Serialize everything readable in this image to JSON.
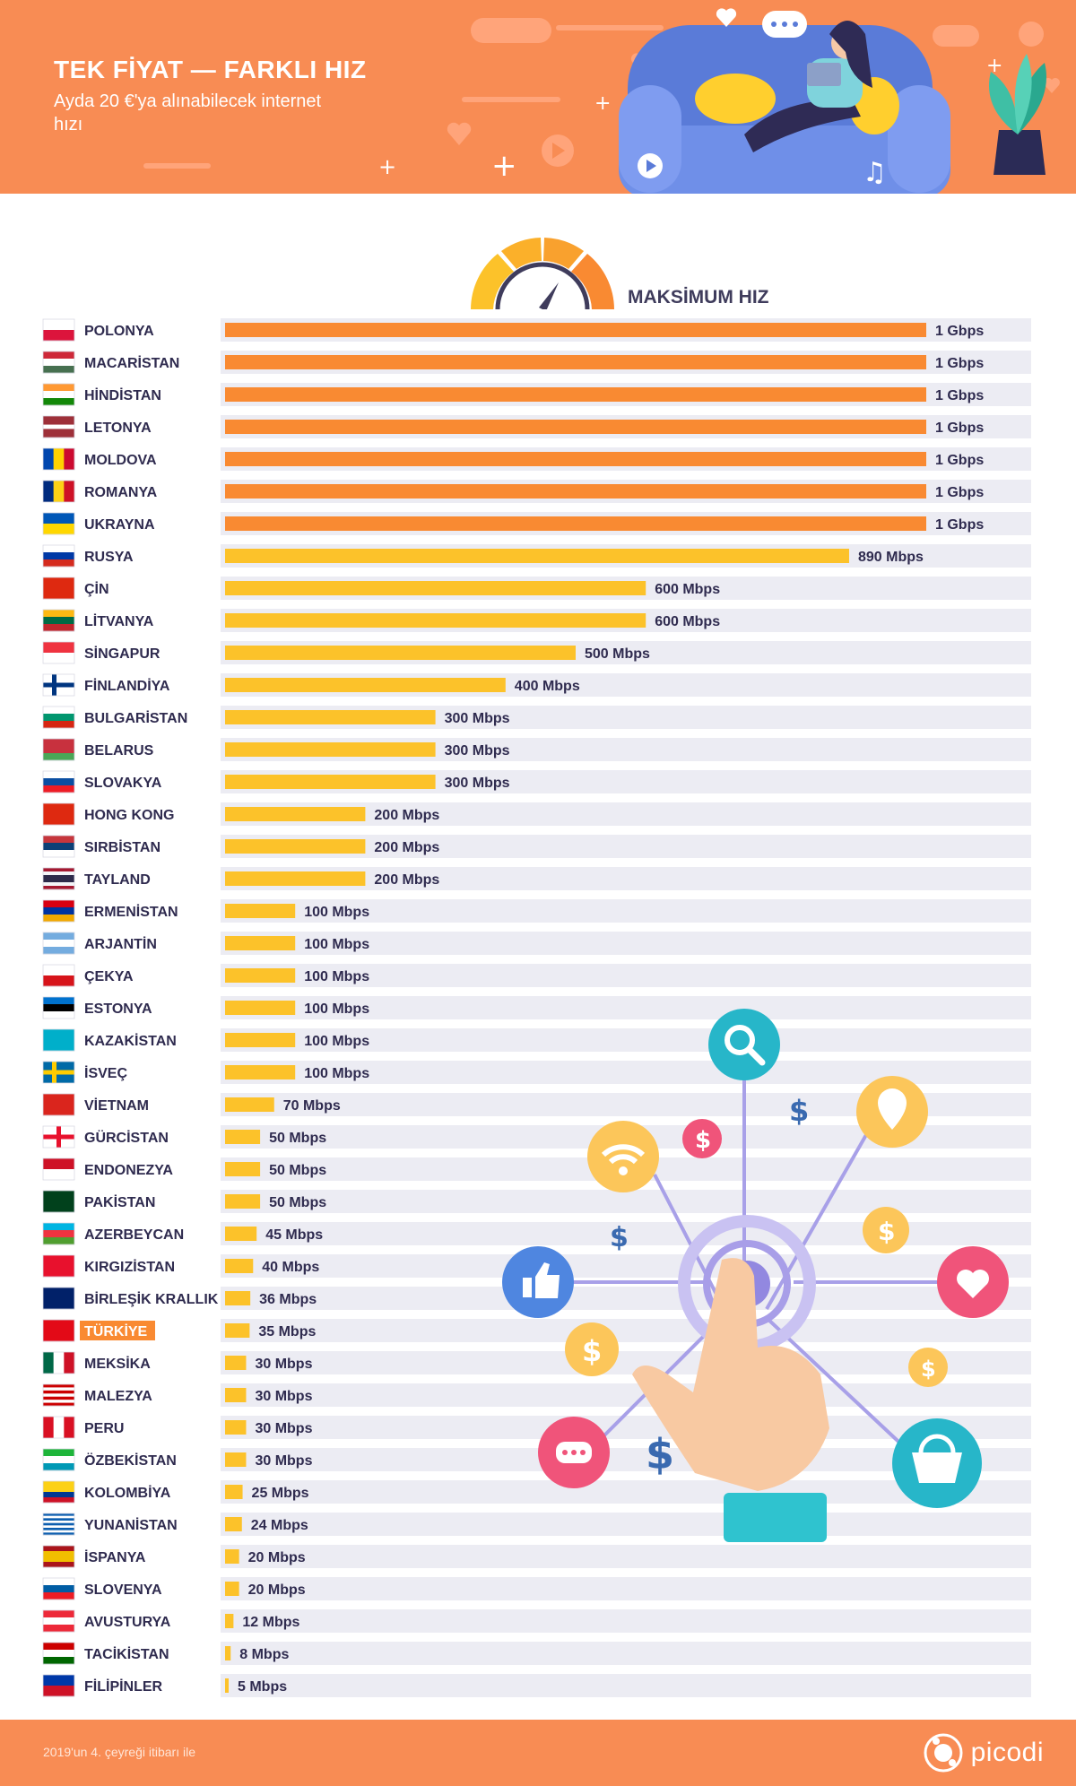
{
  "header": {
    "title": "TEK FİYAT — FARKLI HIZ",
    "subtitle": "Ayda 20 €'ya alınabilecek internet hızı"
  },
  "colors": {
    "header_bg": "#f88c54",
    "bar_max": "#f98a32",
    "bar_other": "#fcc22a",
    "row_bg": "#ececf3",
    "text": "#2f2b4f",
    "highlight": "#f98a32"
  },
  "chart_data": {
    "type": "bar",
    "orientation": "horizontal",
    "title": "MAKSİMUM HIZ",
    "unit": "Mbps",
    "xlim": [
      0,
      1000
    ],
    "highlight_category": "TÜRKİYE",
    "categories": [
      "POLONYA",
      "MACARİSTAN",
      "HİNDİSTAN",
      "LETONYA",
      "MOLDOVA",
      "ROMANYA",
      "UKRAYNA",
      "RUSYA",
      "ÇİN",
      "LİTVANYA",
      "SİNGAPUR",
      "FİNLANDİYA",
      "BULGARİSTAN",
      "BELARUS",
      "SLOVAKYA",
      "HONG KONG",
      "SIRBİSTAN",
      "TAYLAND",
      "ERMENİSTAN",
      "ARJANTİN",
      "ÇEKYA",
      "ESTONYA",
      "KAZAKİSTAN",
      "İSVEÇ",
      "VİETNAM",
      "GÜRCİSTAN",
      "ENDONEZYA",
      "PAKİSTAN",
      "AZERBEYCAN",
      "KIRGIZİSTAN",
      "BİRLEŞİK KRALLIK",
      "TÜRKİYE",
      "MEKSİKA",
      "MALEZYA",
      "PERU",
      "ÖZBEKİSTAN",
      "KOLOMBİYA",
      "YUNANİSTAN",
      "İSPANYA",
      "SLOVENYA",
      "AVUSTURYA",
      "TACİKİSTAN",
      "FİLİPİNLER"
    ],
    "values": [
      1000,
      1000,
      1000,
      1000,
      1000,
      1000,
      1000,
      890,
      600,
      600,
      500,
      400,
      300,
      300,
      300,
      200,
      200,
      200,
      100,
      100,
      100,
      100,
      100,
      100,
      70,
      50,
      50,
      50,
      45,
      40,
      36,
      35,
      30,
      30,
      30,
      30,
      25,
      24,
      20,
      20,
      12,
      8,
      5
    ],
    "value_labels": [
      "1 Gbps",
      "1 Gbps",
      "1 Gbps",
      "1 Gbps",
      "1 Gbps",
      "1 Gbps",
      "1 Gbps",
      "890 Mbps",
      "600 Mbps",
      "600 Mbps",
      "500 Mbps",
      "400 Mbps",
      "300 Mbps",
      "300 Mbps",
      "300 Mbps",
      "200 Mbps",
      "200 Mbps",
      "200 Mbps",
      "100 Mbps",
      "100 Mbps",
      "100 Mbps",
      "100 Mbps",
      "100 Mbps",
      "100 Mbps",
      "70 Mbps",
      "50 Mbps",
      "50 Mbps",
      "50 Mbps",
      "45 Mbps",
      "40 Mbps",
      "36 Mbps",
      "35 Mbps",
      "30 Mbps",
      "30 Mbps",
      "30 Mbps",
      "30 Mbps",
      "25 Mbps",
      "24 Mbps",
      "20 Mbps",
      "20 Mbps",
      "12 Mbps",
      "8 Mbps",
      "5 Mbps"
    ],
    "flags": [
      {
        "t": "h",
        "c": [
          "#ffffff",
          "#dc143c"
        ]
      },
      {
        "t": "h",
        "c": [
          "#ce2939",
          "#ffffff",
          "#477050"
        ]
      },
      {
        "t": "h",
        "c": [
          "#ff9933",
          "#ffffff",
          "#138808"
        ]
      },
      {
        "t": "h",
        "c": [
          "#9e3039",
          "#ffffff",
          "#9e3039"
        ],
        "w": [
          2,
          1,
          2
        ]
      },
      {
        "t": "v",
        "c": [
          "#0046ae",
          "#ffd200",
          "#cc092f"
        ]
      },
      {
        "t": "v",
        "c": [
          "#002b7f",
          "#fcd116",
          "#ce1126"
        ]
      },
      {
        "t": "h",
        "c": [
          "#0057b7",
          "#ffd700"
        ]
      },
      {
        "t": "h",
        "c": [
          "#ffffff",
          "#0039a6",
          "#d52b1e"
        ]
      },
      {
        "t": "h",
        "c": [
          "#de2910"
        ]
      },
      {
        "t": "h",
        "c": [
          "#fdb913",
          "#006a44",
          "#c1272d"
        ]
      },
      {
        "t": "h",
        "c": [
          "#ef3340",
          "#ffffff"
        ]
      },
      {
        "t": "nordic",
        "c": [
          "#ffffff",
          "#003580"
        ]
      },
      {
        "t": "h",
        "c": [
          "#ffffff",
          "#00966e",
          "#d62612"
        ]
      },
      {
        "t": "h",
        "c": [
          "#c8313e",
          "#4aa657"
        ],
        "w": [
          2,
          1
        ]
      },
      {
        "t": "h",
        "c": [
          "#ffffff",
          "#0b4ea2",
          "#ee1c25"
        ]
      },
      {
        "t": "h",
        "c": [
          "#de2910"
        ]
      },
      {
        "t": "h",
        "c": [
          "#c6363c",
          "#0c4076",
          "#ffffff"
        ]
      },
      {
        "t": "h",
        "c": [
          "#a51931",
          "#f4f5f8",
          "#2d2a4a",
          "#f4f5f8",
          "#a51931"
        ],
        "w": [
          1,
          1,
          2,
          1,
          1
        ]
      },
      {
        "t": "h",
        "c": [
          "#d90012",
          "#0033a0",
          "#f2a800"
        ]
      },
      {
        "t": "h",
        "c": [
          "#74acdf",
          "#ffffff",
          "#74acdf"
        ]
      },
      {
        "t": "h",
        "c": [
          "#ffffff",
          "#d7141a"
        ]
      },
      {
        "t": "h",
        "c": [
          "#0072ce",
          "#000000",
          "#ffffff"
        ]
      },
      {
        "t": "h",
        "c": [
          "#00afca"
        ]
      },
      {
        "t": "nordic",
        "c": [
          "#006aa7",
          "#fecc00"
        ]
      },
      {
        "t": "h",
        "c": [
          "#da251d"
        ]
      },
      {
        "t": "cross",
        "c": [
          "#ffffff",
          "#e8112d"
        ]
      },
      {
        "t": "h",
        "c": [
          "#ce1126",
          "#ffffff"
        ]
      },
      {
        "t": "h",
        "c": [
          "#01411c"
        ]
      },
      {
        "t": "h",
        "c": [
          "#00b5e2",
          "#ef3340",
          "#509e2f"
        ]
      },
      {
        "t": "h",
        "c": [
          "#e8112d"
        ]
      },
      {
        "t": "h",
        "c": [
          "#012169"
        ]
      },
      {
        "t": "h",
        "c": [
          "#e30a17"
        ]
      },
      {
        "t": "v",
        "c": [
          "#006847",
          "#ffffff",
          "#ce1126"
        ]
      },
      {
        "t": "h",
        "c": [
          "#cc0001",
          "#ffffff",
          "#cc0001",
          "#ffffff",
          "#cc0001",
          "#ffffff",
          "#cc0001"
        ]
      },
      {
        "t": "v",
        "c": [
          "#d91023",
          "#ffffff",
          "#d91023"
        ]
      },
      {
        "t": "h",
        "c": [
          "#1eb53a",
          "#ffffff",
          "#0099b5"
        ]
      },
      {
        "t": "h",
        "c": [
          "#fcd116",
          "#003893",
          "#ce1126"
        ],
        "w": [
          2,
          1,
          1
        ]
      },
      {
        "t": "h",
        "c": [
          "#0d5eaf",
          "#ffffff",
          "#0d5eaf",
          "#ffffff",
          "#0d5eaf",
          "#ffffff",
          "#0d5eaf",
          "#ffffff",
          "#0d5eaf"
        ]
      },
      {
        "t": "h",
        "c": [
          "#aa151b",
          "#f1bf00",
          "#aa151b"
        ],
        "w": [
          1,
          2,
          1
        ]
      },
      {
        "t": "h",
        "c": [
          "#ffffff",
          "#005da4",
          "#ed1c24"
        ]
      },
      {
        "t": "h",
        "c": [
          "#ed2939",
          "#ffffff",
          "#ed2939"
        ]
      },
      {
        "t": "h",
        "c": [
          "#cc0000",
          "#ffffff",
          "#006600"
        ]
      },
      {
        "t": "h",
        "c": [
          "#0038a8",
          "#ce1126"
        ]
      }
    ]
  },
  "footer": {
    "note": "2019'un 4. çeyreği itibarı ile",
    "brand": "picodi"
  }
}
